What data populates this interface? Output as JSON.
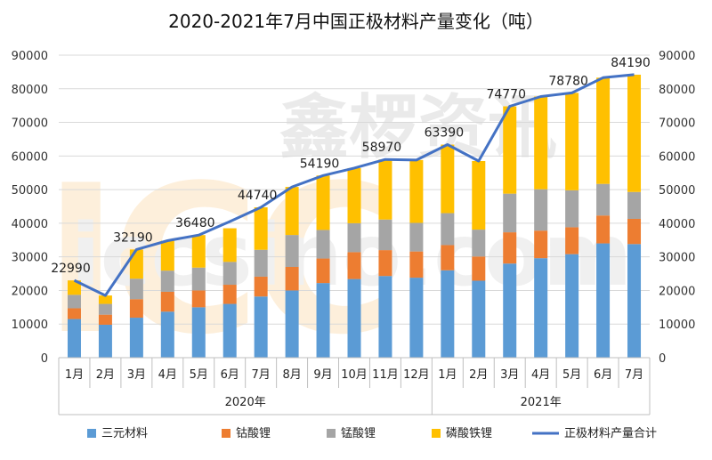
{
  "chart_data": {
    "type": "bar",
    "title": "2020-2021年7月中国正极材料产量变化（吨）",
    "watermark": {
      "main": "ICC",
      "cn": "鑫椤资讯",
      "url": "iccsino.com"
    },
    "categories": [
      "1月",
      "2月",
      "3月",
      "4月",
      "5月",
      "6月",
      "7月",
      "8月",
      "9月",
      "10月",
      "11月",
      "12月",
      "1月",
      "2月",
      "3月",
      "4月",
      "5月",
      "6月",
      "7月"
    ],
    "year_groups": [
      {
        "label": "2020年",
        "span": 12
      },
      {
        "label": "2021年",
        "span": 7
      }
    ],
    "series": [
      {
        "name": "三元材料",
        "type": "bar",
        "color": "#5B9BD5",
        "values": [
          11500,
          9800,
          11900,
          13700,
          15000,
          16000,
          18200,
          20000,
          22200,
          23400,
          24300,
          23800,
          26000,
          22900,
          28000,
          29600,
          30800,
          34000,
          33800
        ]
      },
      {
        "name": "钴酸锂",
        "type": "bar",
        "color": "#ED7D31",
        "values": [
          3200,
          3000,
          5500,
          5900,
          5000,
          5700,
          5900,
          7000,
          7300,
          8000,
          7700,
          7800,
          7500,
          7200,
          9300,
          8200,
          8000,
          8300,
          7500
        ]
      },
      {
        "name": "锰酸锂",
        "type": "bar",
        "color": "#A5A5A5",
        "values": [
          4000,
          3200,
          6100,
          6300,
          6800,
          6800,
          8000,
          9500,
          8500,
          8600,
          9100,
          8500,
          9500,
          8000,
          11500,
          12300,
          11000,
          9400,
          8000
        ]
      },
      {
        "name": "磷酸铁锂",
        "type": "bar",
        "color": "#FFC000",
        "values": [
          4290,
          2500,
          8690,
          8900,
          9680,
          10000,
          12640,
          14300,
          16190,
          16400,
          17870,
          18700,
          20390,
          20400,
          25970,
          27600,
          28980,
          31600,
          34890
        ]
      },
      {
        "name": "正极材料产量合计",
        "type": "line",
        "color": "#4472C4",
        "values": [
          22990,
          18500,
          32190,
          34800,
          36480,
          40500,
          44740,
          50800,
          54190,
          56400,
          58970,
          58800,
          63390,
          58500,
          74770,
          77700,
          78780,
          83300,
          84190
        ]
      }
    ],
    "data_labels": [
      {
        "index": 0,
        "text": "22990"
      },
      {
        "index": 2,
        "text": "32190"
      },
      {
        "index": 4,
        "text": "36480"
      },
      {
        "index": 6,
        "text": "44740"
      },
      {
        "index": 8,
        "text": "54190"
      },
      {
        "index": 10,
        "text": "58970"
      },
      {
        "index": 12,
        "text": "63390"
      },
      {
        "index": 14,
        "text": "74770"
      },
      {
        "index": 16,
        "text": "78780"
      },
      {
        "index": 18,
        "text": "84190"
      }
    ],
    "ylim": [
      0,
      90000
    ],
    "yticks": [
      "0",
      "10000",
      "20000",
      "30000",
      "40000",
      "50000",
      "60000",
      "70000",
      "80000",
      "90000"
    ],
    "secondary_yticks": [
      "0",
      "10000",
      "20000",
      "30000",
      "40000",
      "50000",
      "60000",
      "70000",
      "80000",
      "90000"
    ],
    "grid": true,
    "legend_position": "bottom",
    "xlabel": "",
    "ylabel": ""
  }
}
